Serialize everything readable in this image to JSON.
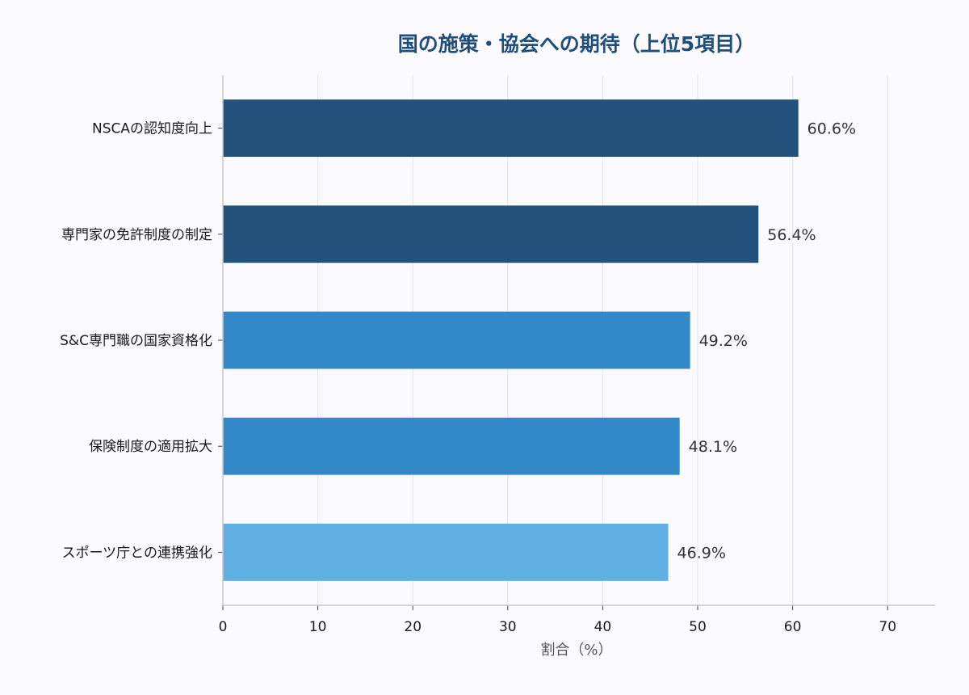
{
  "chart_data": {
    "type": "bar",
    "orientation": "horizontal",
    "title": "国の施策・協会への期待（上位5項目）",
    "xlabel": "割合（%）",
    "ylabel": "",
    "xlim": [
      0,
      75
    ],
    "xticks": [
      "0",
      "10",
      "20",
      "30",
      "40",
      "50",
      "60",
      "70"
    ],
    "grid": "vertical",
    "categories": [
      "NSCAの認知度向上",
      "専門家の免許制度の制定",
      "S&C専門職の国家資格化",
      "保険制度の適用拡大",
      "スポーツ庁との連携強化"
    ],
    "values": [
      60.6,
      56.4,
      49.2,
      48.1,
      46.9
    ],
    "value_labels": [
      "60.6%",
      "56.4%",
      "49.2%",
      "48.1%",
      "46.9%"
    ],
    "colors": [
      "#1e4e79",
      "#1e4e79",
      "#2f86c6",
      "#2f86c6",
      "#5dade2"
    ],
    "title_color": "#1e4e79"
  }
}
